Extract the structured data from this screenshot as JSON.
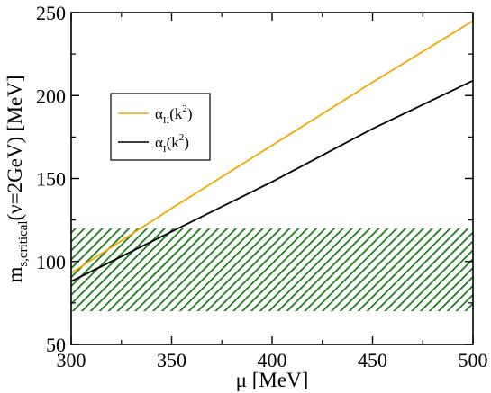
{
  "chart_data": {
    "type": "line",
    "xlabel": "μ [MeV]",
    "ylabel": "m",
    "ylabel_sub": "s,critical",
    "ylabel_rest": "(ν=2GeV) [MeV]",
    "xlim": [
      300,
      500
    ],
    "ylim": [
      50,
      250
    ],
    "x_ticks": [
      300,
      350,
      400,
      450,
      500
    ],
    "y_ticks": [
      50,
      100,
      150,
      200,
      250
    ],
    "grid": false,
    "legend_position": "upper-left",
    "band": {
      "y_range": [
        70,
        120
      ],
      "color": "#1e7b1e",
      "pattern": "diagonal-hatch"
    },
    "series": [
      {
        "name": "α_II(k^2)",
        "legend_base": "α",
        "legend_sub": "II",
        "legend_paren": "(k",
        "legend_sup": "2",
        "legend_close": ")",
        "color": "#f5a800",
        "x": [
          300,
          350,
          400,
          450,
          500
        ],
        "y": [
          93,
          132,
          170,
          208,
          245
        ]
      },
      {
        "name": "α_I(k^2)",
        "legend_base": "α",
        "legend_sub": "I",
        "legend_paren": "(k",
        "legend_sup": "2",
        "legend_close": ")",
        "color": "#000000",
        "x": [
          300,
          350,
          400,
          450,
          500
        ],
        "y": [
          88,
          118,
          148,
          180,
          209
        ]
      }
    ]
  }
}
